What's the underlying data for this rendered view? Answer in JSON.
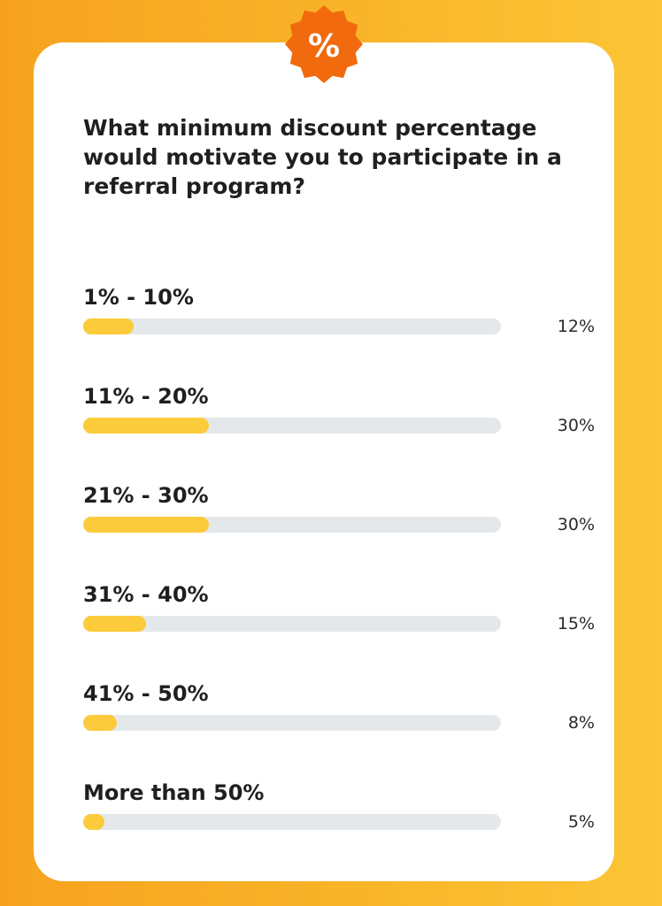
{
  "badge": {
    "symbol": "%",
    "color": "#F26A0E"
  },
  "colors": {
    "bar_fill": "#FCCB3C",
    "track": "#E5E8EB",
    "background": "#F9B52A"
  },
  "chart_data": {
    "type": "bar",
    "orientation": "horizontal",
    "title": "What minimum discount percentage would motivate you to participate in a referral program?",
    "categories": [
      "1% - 10%",
      "11% - 20%",
      "21% - 30%",
      "31% - 40%",
      "41% - 50%",
      "More than 50%"
    ],
    "values": [
      12,
      30,
      30,
      15,
      8,
      5
    ],
    "value_labels": [
      "12%",
      "30%",
      "30%",
      "15%",
      "8%",
      "5%"
    ],
    "unit": "%",
    "xlim": [
      0,
      100
    ],
    "grid": false,
    "legend": "none"
  }
}
